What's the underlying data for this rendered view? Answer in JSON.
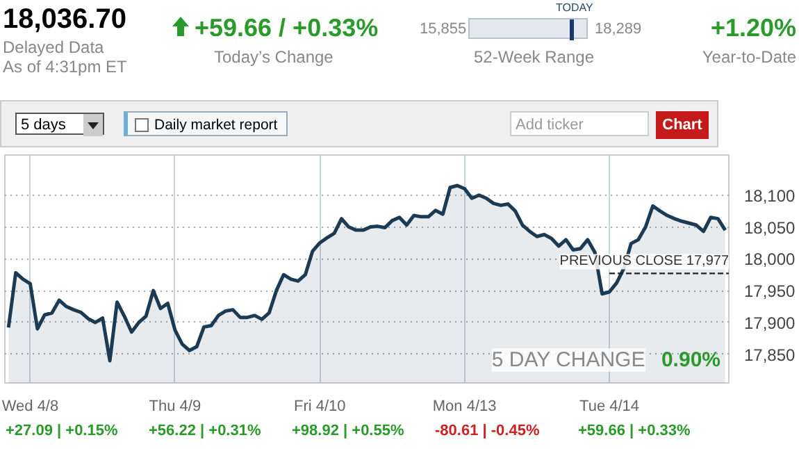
{
  "chart_data": {
    "type": "area",
    "categories": [
      null,
      null,
      null,
      "Wed 4/8",
      null,
      null,
      null,
      null,
      null,
      null,
      null,
      null,
      null,
      null,
      null,
      null,
      null,
      null,
      null,
      null,
      null,
      null,
      null,
      "Thu 4/9",
      null,
      null,
      null,
      null,
      null,
      null,
      null,
      null,
      null,
      null,
      null,
      null,
      null,
      null,
      null,
      null,
      null,
      null,
      null,
      "Fri 4/10",
      null,
      null,
      null,
      null,
      null,
      null,
      null,
      null,
      null,
      null,
      null,
      null,
      null,
      null,
      null,
      null,
      null,
      null,
      null,
      "Mon 4/13",
      null,
      null,
      null,
      null,
      null,
      null,
      null,
      null,
      null,
      null,
      null,
      null,
      null,
      null,
      null,
      null,
      null,
      null,
      null,
      "Tue 4/14",
      null,
      null,
      null,
      null,
      null,
      null,
      null,
      null,
      null,
      null,
      null,
      null,
      null,
      null,
      null,
      null
    ],
    "series": [
      {
        "color": "#1b3a54",
        "values": [
          17892,
          17978,
          17968,
          17961,
          17890,
          17912,
          17915,
          17935,
          17925,
          17920,
          17916,
          17906,
          17900,
          17907,
          17840,
          17932,
          17910,
          17885,
          17900,
          17910,
          17950,
          17922,
          17930,
          17888,
          17866,
          17856,
          17862,
          17893,
          17895,
          17911,
          17918,
          17920,
          17908,
          17908,
          17911,
          17905,
          17915,
          17950,
          17975,
          17968,
          17965,
          17975,
          18012,
          18025,
          18033,
          18040,
          18063,
          18050,
          18045,
          18045,
          18050,
          18051,
          18049,
          18060,
          18065,
          18053,
          18068,
          18066,
          18066,
          18076,
          18070,
          18112,
          18115,
          18110,
          18095,
          18100,
          18095,
          18087,
          18084,
          18086,
          18075,
          18053,
          18043,
          18035,
          18038,
          18032,
          18020,
          18030,
          18014,
          18016,
          18030,
          18010,
          17945,
          17948,
          17962,
          17985,
          18024,
          18030,
          18050,
          18083,
          18075,
          18068,
          18063,
          18059,
          18056,
          18053,
          18043,
          18065,
          18063,
          18045
        ]
      }
    ],
    "ylim": [
      17805,
      18163
    ],
    "yticks": [
      {
        "value": 17850,
        "label": "17,850"
      },
      {
        "value": 17900,
        "label": "17,900"
      },
      {
        "value": 17950,
        "label": "17,950"
      },
      {
        "value": 18000,
        "label": "18,000"
      },
      {
        "value": 18050,
        "label": "18,050"
      },
      {
        "value": 18100,
        "label": "18,100"
      }
    ],
    "grid": true,
    "ref_lines": [
      {
        "axis": "y",
        "value": 17977,
        "label": "PREVIOUS CLOSE 17,977",
        "line_style": "dashed",
        "color": "#222222"
      }
    ],
    "annotations": [
      "18,036.70",
      "Delayed Data",
      "As of 4:31pm ET",
      "+59.66 / +0.33%",
      "Today’s Change",
      "15,855",
      "TODAY",
      "18,289",
      "52-Week Range",
      "+1.20%",
      "Year-to-Date",
      "5 days",
      "Daily market report",
      "Add ticker",
      "Chart",
      "5 DAY CHANGE",
      "0.90%",
      "+27.09 | +0.15%",
      "+56.22 | +0.31%",
      "+98.92 | +0.55%",
      "-80.61 | -0.45%",
      "+59.66 | +0.33%"
    ]
  }
}
